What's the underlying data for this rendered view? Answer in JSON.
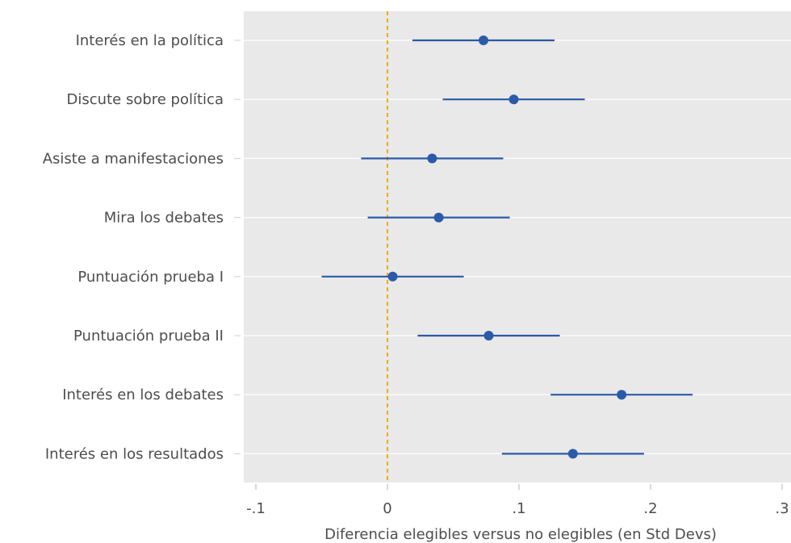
{
  "chart_data": {
    "type": "scatter",
    "subtype": "coefficient-plot",
    "categories": [
      "Interés en la política",
      "Discute sobre política",
      "Asiste a manifestaciones",
      "Mira los debates",
      "Puntuación prueba I",
      "Puntuación prueba II",
      "Interés en los debates",
      "Interés en los resultados"
    ],
    "estimates": [
      0.073,
      0.096,
      0.034,
      0.039,
      0.004,
      0.077,
      0.178,
      0.141
    ],
    "ci_low": [
      0.019,
      0.042,
      -0.02,
      -0.015,
      -0.05,
      0.023,
      0.124,
      0.087
    ],
    "ci_high": [
      0.127,
      0.15,
      0.088,
      0.093,
      0.058,
      0.131,
      0.232,
      0.195
    ],
    "x_ticks": [
      -0.1,
      0,
      0.1,
      0.2,
      0.3
    ],
    "x_tick_labels": [
      "-.1",
      "0",
      ".1",
      ".2",
      ".3"
    ],
    "xlim": [
      -0.11,
      0.3
    ],
    "xlabel": "Diferencia elegibles versus no elegibles (en Std Devs)",
    "ylabel": "",
    "title": "",
    "reference_line": 0,
    "grid": true,
    "colors": {
      "point": "#2b5aa8",
      "reference_line": "#f2a81d",
      "panel_bg": "#e9e9e9",
      "grid": "#ffffff"
    }
  }
}
